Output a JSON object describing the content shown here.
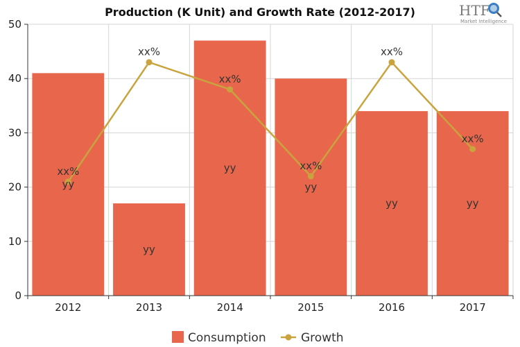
{
  "chart_data": {
    "type": "bar",
    "title": "Production (K Unit) and Growth Rate (2012-2017)",
    "categories": [
      "2012",
      "2013",
      "2014",
      "2015",
      "2016",
      "2017"
    ],
    "ylim": [
      0,
      50
    ],
    "yticks": [
      0,
      10,
      20,
      30,
      40,
      50
    ],
    "grid": true,
    "legend_position": "bottom",
    "series": [
      {
        "name": "Consumption",
        "type": "bar",
        "color": "#e8674c",
        "values": [
          41,
          17,
          47,
          40,
          34,
          34
        ],
        "data_label": "yy"
      },
      {
        "name": "Growth",
        "type": "line",
        "color": "#c9a43e",
        "values": [
          21,
          43,
          38,
          22,
          43,
          27
        ],
        "data_label": "xx%"
      }
    ]
  },
  "logo": {
    "name": "HTF",
    "subtitle": "Market Intelligence",
    "icon": "magnifier-globe-icon"
  }
}
